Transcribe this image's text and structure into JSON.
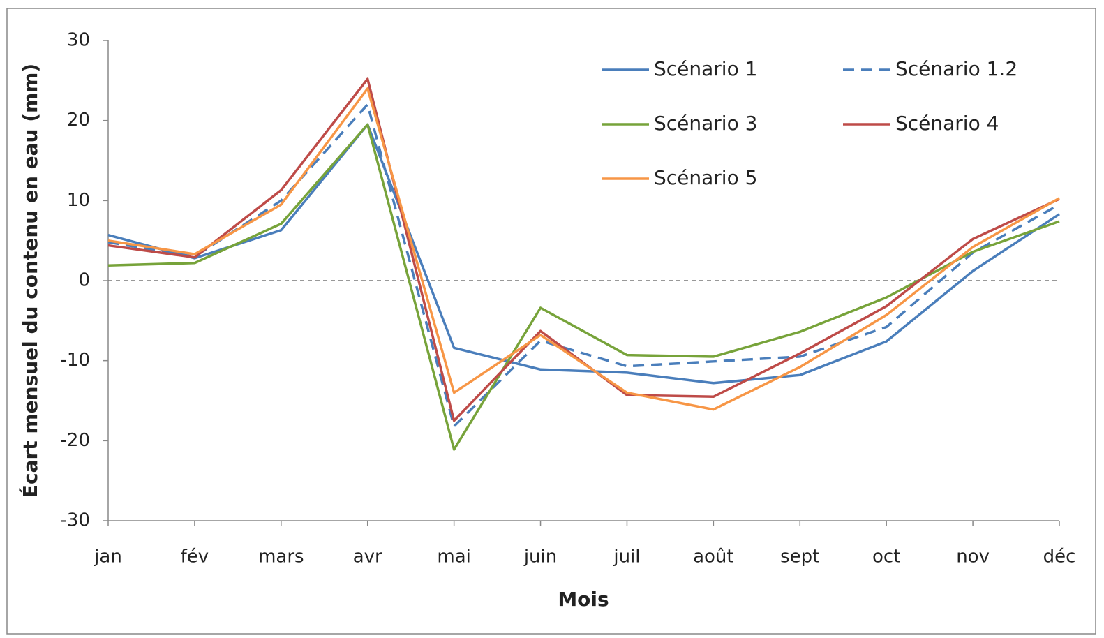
{
  "chart_data": {
    "type": "line",
    "x_label": "Mois",
    "y_label": "Écart mensuel du contenu en eau (mm)",
    "categories": [
      "jan",
      "fév",
      "mars",
      "avr",
      "mai",
      "juin",
      "juil",
      "août",
      "sept",
      "oct",
      "nov",
      "déc"
    ],
    "series": [
      {
        "name": "Scénario 1",
        "color": "#4a7ebb",
        "dashed": false,
        "values": [
          5.7,
          2.8,
          6.3,
          19.5,
          -8.4,
          -11.1,
          -11.5,
          -12.8,
          -11.8,
          -7.6,
          1.2,
          8.3
        ]
      },
      {
        "name": "Scénario 1.2",
        "color": "#4a7ebb",
        "dashed": true,
        "values": [
          4.8,
          3.0,
          10.0,
          22.0,
          -18.2,
          -7.5,
          -10.7,
          -10.1,
          -9.5,
          -5.8,
          3.5,
          9.5
        ]
      },
      {
        "name": "Scénario 3",
        "color": "#77a33a",
        "dashed": false,
        "values": [
          1.9,
          2.2,
          7.1,
          19.5,
          -21.1,
          -3.4,
          -9.3,
          -9.5,
          -6.4,
          -2.1,
          3.6,
          7.4
        ]
      },
      {
        "name": "Scénario 4",
        "color": "#be4b48",
        "dashed": false,
        "values": [
          4.4,
          2.9,
          11.3,
          25.2,
          -17.5,
          -6.3,
          -14.3,
          -14.5,
          -9.1,
          -3.2,
          5.2,
          10.2
        ]
      },
      {
        "name": "Scénario 5",
        "color": "#f79646",
        "dashed": false,
        "values": [
          5.0,
          3.3,
          9.5,
          24.0,
          -14.0,
          -6.8,
          -14.0,
          -16.1,
          -10.8,
          -4.3,
          4.2,
          10.3
        ]
      }
    ],
    "ylim": [
      -30,
      30
    ],
    "yticks": [
      -30,
      -20,
      -10,
      0,
      10,
      20,
      30
    ],
    "zero_line": true,
    "grid": false,
    "legend": "top-right"
  }
}
